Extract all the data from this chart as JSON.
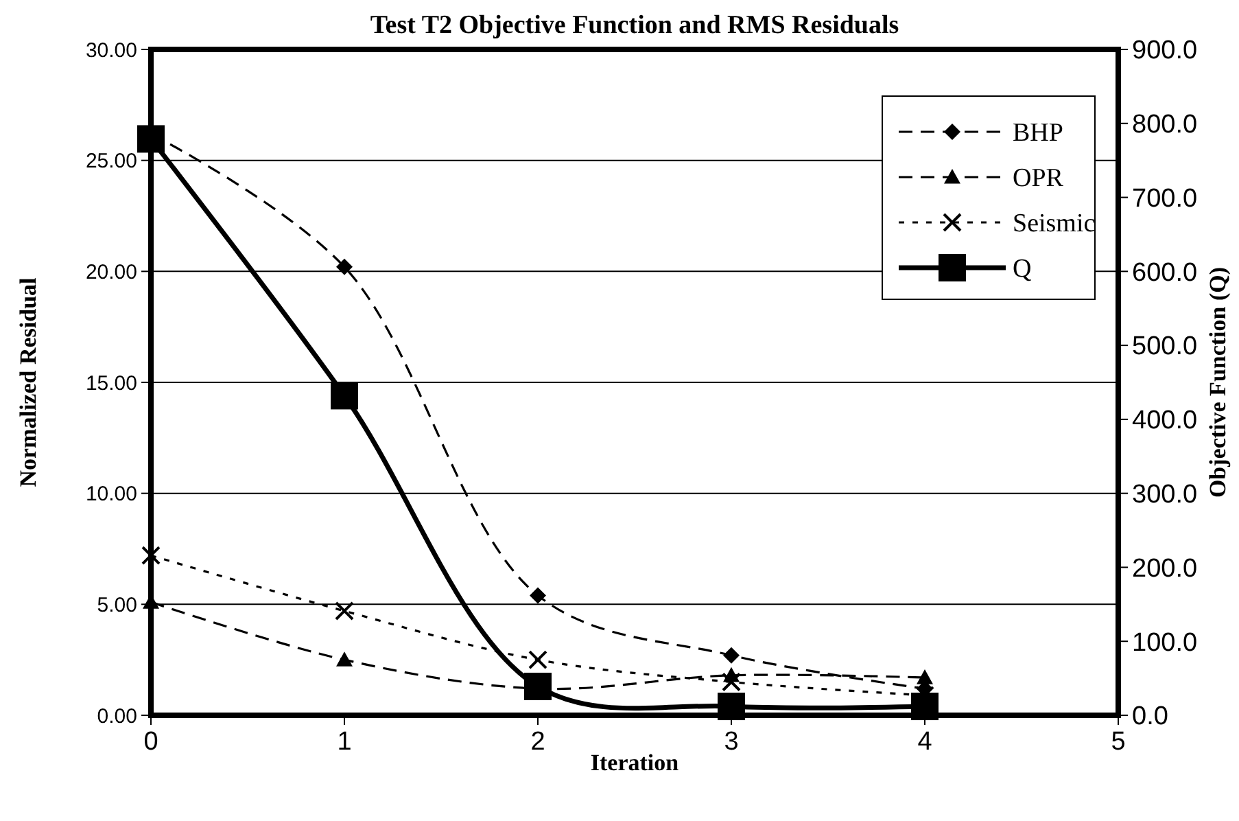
{
  "chart_data": {
    "type": "line",
    "title": "Test T2 Objective Function and RMS  Residuals",
    "xlabel": "Iteration",
    "ylabel": "Normalized Residual",
    "y2label": "Objective Function (Q)",
    "x": [
      0,
      1,
      2,
      3,
      4
    ],
    "series": [
      {
        "name": "BHP",
        "color": "#000000",
        "values": [
          26.2,
          20.2,
          5.4,
          2.7,
          1.2
        ],
        "marker": "diamond",
        "line_style": "dashed"
      },
      {
        "name": "OPR",
        "color": "#000000",
        "values": [
          5.1,
          2.5,
          1.2,
          1.8,
          1.7
        ],
        "marker": "triangle",
        "line_style": "dashed"
      },
      {
        "name": "Seismic",
        "color": "#000000",
        "values": [
          7.2,
          4.7,
          2.5,
          1.5,
          0.9
        ],
        "marker": "cross",
        "line_style": "dotted"
      },
      {
        "name": "Q",
        "color": "#000000",
        "values": [
          779,
          432,
          39,
          12,
          12
        ],
        "marker": "square",
        "line_style": "solid",
        "axis": "y2"
      }
    ],
    "xlim": [
      0,
      5
    ],
    "xticks": [
      0,
      1,
      2,
      3,
      4,
      5
    ],
    "ylim": [
      0,
      30
    ],
    "yticks": [
      {
        "value": 0,
        "label": "0.00"
      },
      {
        "value": 5,
        "label": "5.00"
      },
      {
        "value": 10,
        "label": "10.00"
      },
      {
        "value": 15,
        "label": "15.00"
      },
      {
        "value": 20,
        "label": "20.00"
      },
      {
        "value": 25,
        "label": "25.00"
      },
      {
        "value": 30,
        "label": "30.00"
      }
    ],
    "y2lim": [
      0,
      900
    ],
    "y2ticks": [
      {
        "value": 0,
        "label": "0.0"
      },
      {
        "value": 100,
        "label": "100.0"
      },
      {
        "value": 200,
        "label": "200.0"
      },
      {
        "value": 300,
        "label": "300.0"
      },
      {
        "value": 400,
        "label": "400.0"
      },
      {
        "value": 500,
        "label": "500.0"
      },
      {
        "value": 600,
        "label": "600.0"
      },
      {
        "value": 700,
        "label": "700.0"
      },
      {
        "value": 800,
        "label": "800.0"
      },
      {
        "value": 900,
        "label": "900.0"
      }
    ],
    "grid": "y",
    "legend": "top right"
  }
}
